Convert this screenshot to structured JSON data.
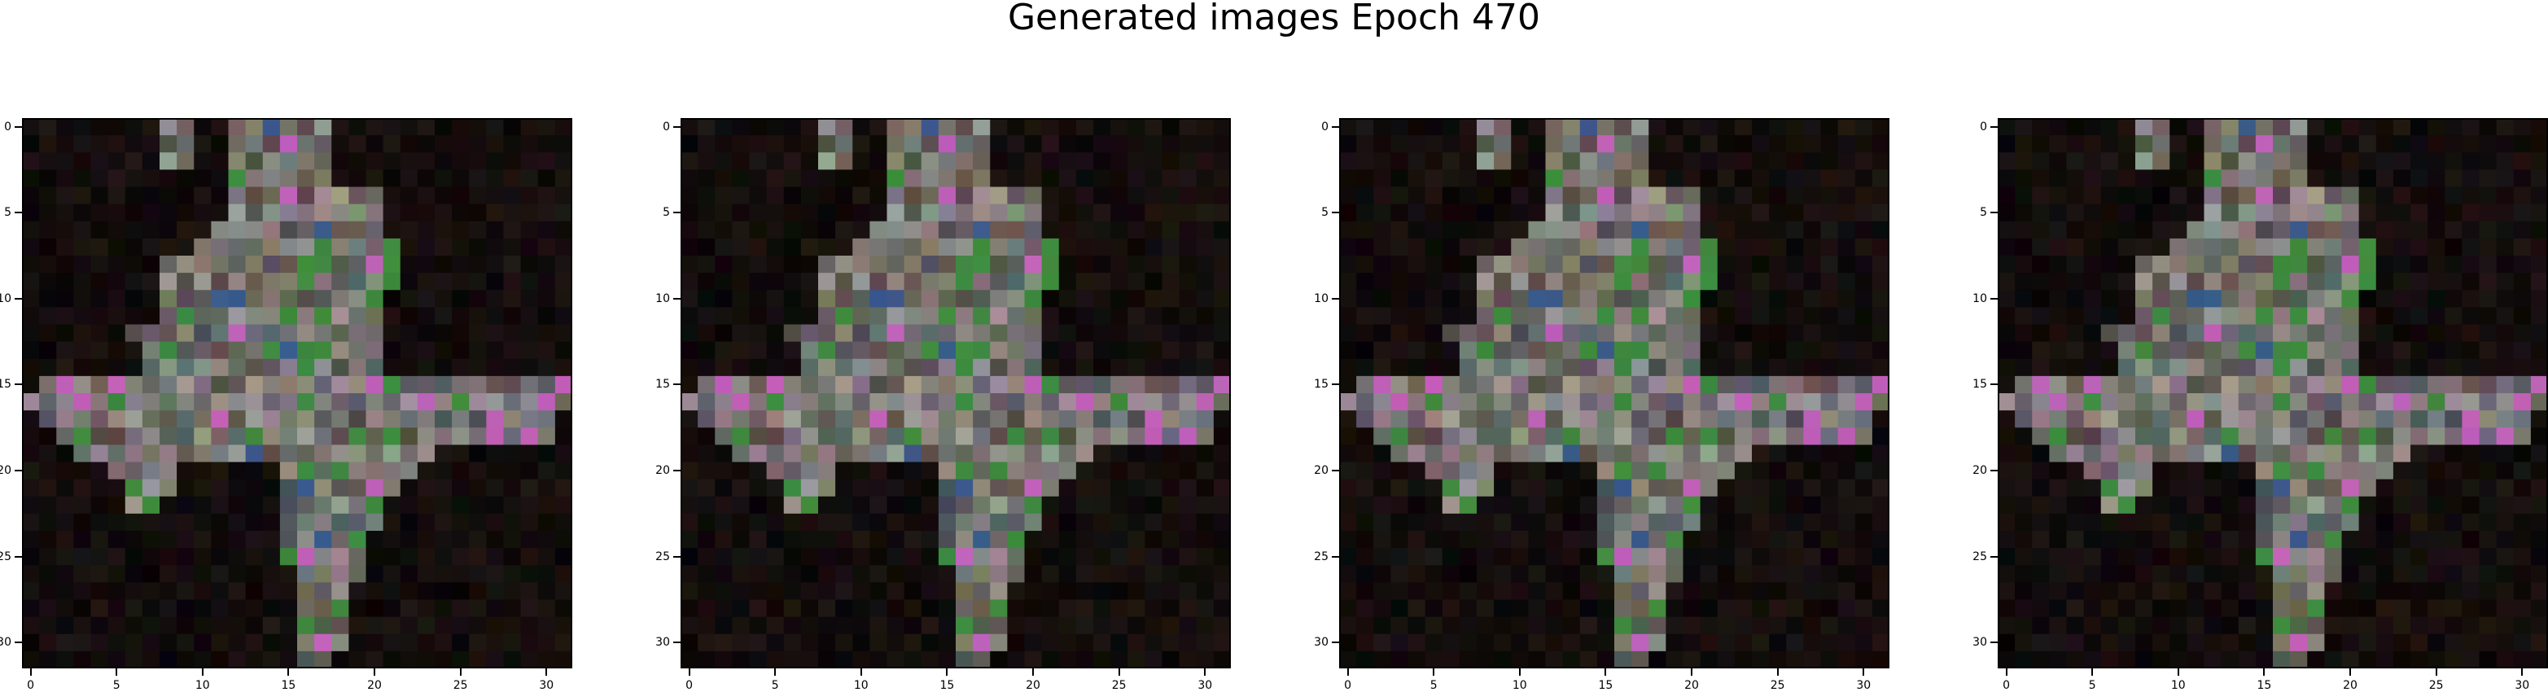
{
  "title": "Generated images Epoch 470",
  "chart_data": {
    "type": "heatmap",
    "title": "Generated images Epoch 470",
    "grid": false,
    "panels": [
      {
        "xticks": [
          "0",
          "5",
          "10",
          "15",
          "20",
          "25",
          "30"
        ],
        "yticks": [
          "0",
          "5",
          "10",
          "15",
          "20",
          "25",
          "30"
        ],
        "xlim": [
          -0.5,
          31.5
        ],
        "ylim": [
          31.5,
          -0.5
        ],
        "grid_shape": [
          32,
          32
        ]
      },
      {
        "xticks": [
          "0",
          "5",
          "10",
          "15",
          "20",
          "25",
          "30"
        ],
        "yticks": [
          "0",
          "5",
          "10",
          "15",
          "20",
          "25",
          "30"
        ],
        "xlim": [
          -0.5,
          31.5
        ],
        "ylim": [
          31.5,
          -0.5
        ],
        "grid_shape": [
          32,
          32
        ]
      },
      {
        "xticks": [
          "0",
          "5",
          "10",
          "15",
          "20",
          "25",
          "30"
        ],
        "yticks": [
          "0",
          "5",
          "10",
          "15",
          "20",
          "25",
          "30"
        ],
        "xlim": [
          -0.5,
          31.5
        ],
        "ylim": [
          31.5,
          -0.5
        ],
        "grid_shape": [
          32,
          32
        ]
      },
      {
        "xticks": [
          "0",
          "5",
          "10",
          "15",
          "20",
          "25",
          "30"
        ],
        "yticks": [
          "0",
          "5",
          "10",
          "15",
          "20",
          "25",
          "30"
        ],
        "xlim": [
          -0.5,
          31.5
        ],
        "ylim": [
          31.5,
          -0.5
        ],
        "grid_shape": [
          32,
          32
        ]
      }
    ],
    "colors": {
      "background": "#050303",
      "body": "#8e8a86",
      "accent_pink": "#c060b8",
      "accent_green": "#3f8a3f",
      "accent_blue": "#3a5a8a"
    }
  }
}
